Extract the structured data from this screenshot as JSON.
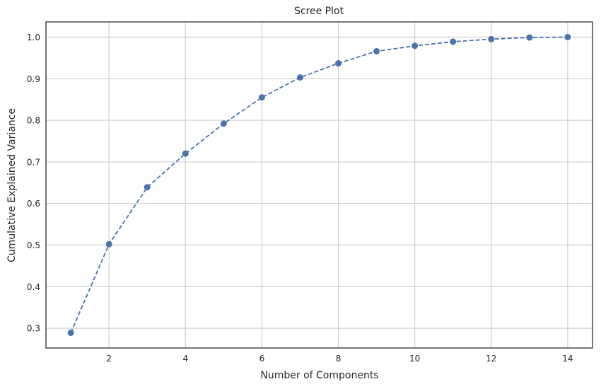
{
  "chart_data": {
    "type": "line",
    "title": "Scree Plot",
    "xlabel": "Number of Components",
    "ylabel": "Cumulative Explained Variance",
    "x": [
      1,
      2,
      3,
      4,
      5,
      6,
      7,
      8,
      9,
      10,
      11,
      12,
      13,
      14
    ],
    "series": [
      {
        "values": [
          0.289,
          0.502,
          0.639,
          0.72,
          0.792,
          0.855,
          0.903,
          0.937,
          0.966,
          0.979,
          0.989,
          0.995,
          0.999,
          1.0
        ],
        "color": "#4c72b0",
        "line_style": "dashed",
        "marker": "circle"
      }
    ],
    "xticks": [
      "2",
      "4",
      "6",
      "8",
      "10",
      "12",
      "14"
    ],
    "yticks": [
      "0.3",
      "0.4",
      "0.5",
      "0.6",
      "0.7",
      "0.8",
      "0.9",
      "1.0"
    ],
    "xlim": [
      0.35,
      14.65
    ],
    "ylim": [
      0.2525,
      1.0365
    ],
    "grid": true,
    "grid_color": "#cccccc",
    "frame_color": "#262626"
  }
}
